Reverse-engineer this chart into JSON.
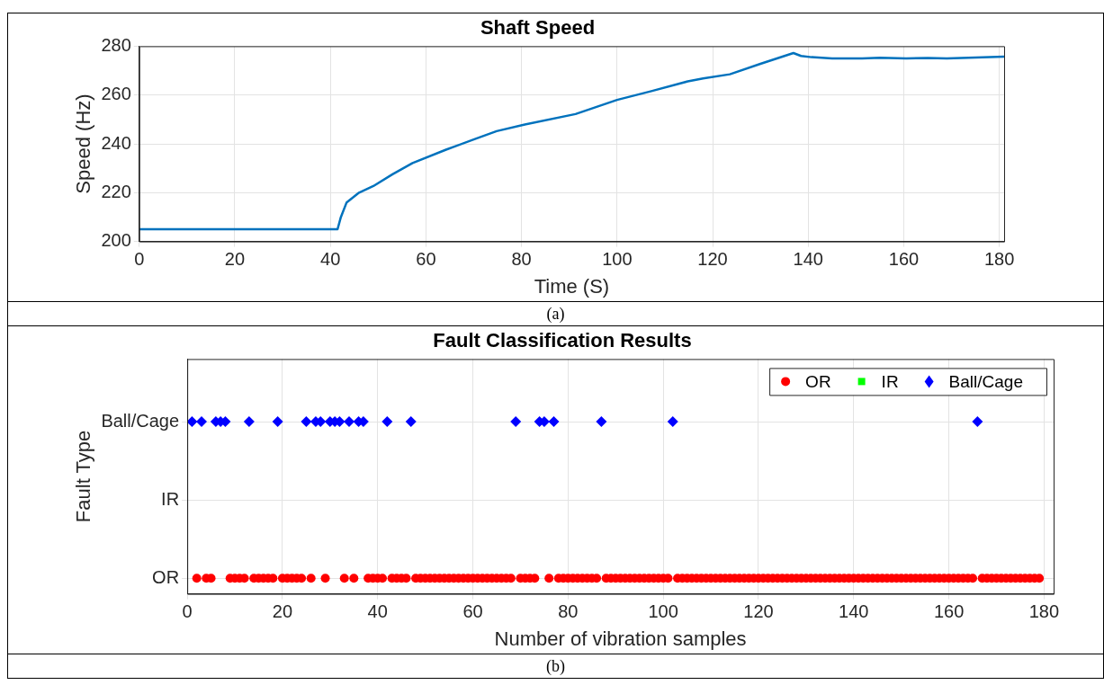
{
  "chart_data": [
    {
      "type": "line",
      "title": "Shaft Speed",
      "xlabel": "Time (S)",
      "ylabel": "Speed (Hz)",
      "annotations": [
        "(a)"
      ],
      "series": [
        {
          "color": "#0072bd",
          "x": [
            0,
            10,
            20,
            30,
            41.5,
            42.2,
            43.4,
            46,
            49,
            53,
            57.2,
            64.2,
            70,
            74.8,
            80.7,
            91.3,
            100,
            107,
            114.8,
            118,
            123.6,
            130,
            136.9,
            138.5,
            140.7,
            145,
            151.3,
            155,
            160.5,
            165,
            169,
            175,
            181
          ],
          "values": [
            205,
            205,
            205,
            205,
            205,
            210,
            216,
            220,
            222.7,
            227.5,
            232.1,
            237.6,
            241.8,
            245.2,
            247.9,
            252.2,
            258,
            261.5,
            265.6,
            266.8,
            268.5,
            272.8,
            277.2,
            276,
            275.5,
            275,
            275,
            275.3,
            275,
            275.2,
            275,
            275.4,
            275.7
          ]
        }
      ],
      "xlim": [
        0,
        181
      ],
      "xticks": [
        0,
        20,
        40,
        60,
        80,
        100,
        120,
        140,
        160,
        180
      ],
      "ylim": [
        200,
        280
      ],
      "yticks": [
        200,
        220,
        240,
        260,
        280
      ],
      "grid": true,
      "line_style": "solid"
    },
    {
      "type": "scatter",
      "orientation": "horizontal",
      "title": "Fault Classification Results",
      "xlabel": "Number of vibration samples",
      "ylabel": "Fault Type",
      "annotations": [
        "(b)"
      ],
      "categories": [
        "Ball/Cage",
        "IR",
        "OR"
      ],
      "series": [
        {
          "name": "OR",
          "color": "#ff0000",
          "marker": "circle",
          "x": [
            "OR",
            "OR",
            "OR",
            "OR",
            "OR",
            "OR",
            "OR",
            "OR",
            "OR",
            "OR",
            "OR",
            "OR",
            "OR",
            "OR",
            "OR",
            "OR",
            "OR",
            "OR",
            "OR",
            "OR",
            "OR",
            "OR",
            "OR",
            "OR",
            "OR",
            "OR",
            "OR",
            "OR",
            "OR",
            "OR",
            "OR",
            "OR",
            "OR",
            "OR",
            "OR",
            "OR",
            "OR",
            "OR",
            "OR",
            "OR",
            "OR",
            "OR",
            "OR",
            "OR",
            "OR",
            "OR",
            "OR",
            "OR",
            "OR",
            "OR",
            "OR",
            "OR",
            "OR",
            "OR",
            "OR",
            "OR",
            "OR",
            "OR",
            "OR",
            "OR",
            "OR",
            "OR",
            "OR",
            "OR",
            "OR",
            "OR",
            "OR",
            "OR",
            "OR",
            "OR",
            "OR",
            "OR",
            "OR",
            "OR",
            "OR",
            "OR",
            "OR",
            "OR",
            "OR",
            "OR",
            "OR",
            "OR",
            "OR",
            "OR",
            "OR",
            "OR",
            "OR",
            "OR",
            "OR",
            "OR",
            "OR",
            "OR",
            "OR",
            "OR",
            "OR",
            "OR",
            "OR",
            "OR",
            "OR",
            "OR",
            "OR",
            "OR",
            "OR",
            "OR",
            "OR",
            "OR",
            "OR",
            "OR",
            "OR",
            "OR",
            "OR",
            "OR",
            "OR",
            "OR",
            "OR",
            "OR",
            "OR",
            "OR",
            "OR",
            "OR",
            "OR",
            "OR",
            "OR",
            "OR",
            "OR",
            "OR",
            "OR",
            "OR",
            "OR",
            "OR",
            "OR",
            "OR",
            "OR",
            "OR",
            "OR",
            "OR",
            "OR",
            "OR",
            "OR",
            "OR",
            "OR",
            "OR",
            "OR",
            "OR",
            "OR",
            "OR",
            "OR",
            "OR",
            "OR",
            "OR",
            "OR",
            "OR",
            "OR",
            "OR"
          ],
          "values": [
            2,
            4,
            5,
            9,
            10,
            11,
            12,
            14,
            15,
            16,
            17,
            18,
            20,
            21,
            22,
            23,
            24,
            26,
            29,
            33,
            35,
            38,
            39,
            40,
            41,
            43,
            44,
            45,
            46,
            48,
            49,
            50,
            51,
            52,
            53,
            54,
            55,
            56,
            57,
            58,
            59,
            60,
            61,
            62,
            63,
            64,
            65,
            66,
            67,
            68,
            70,
            71,
            72,
            73,
            76,
            78,
            79,
            80,
            81,
            82,
            83,
            84,
            85,
            86,
            88,
            89,
            90,
            91,
            92,
            93,
            94,
            95,
            96,
            97,
            98,
            99,
            100,
            101,
            103,
            104,
            105,
            106,
            107,
            108,
            109,
            110,
            111,
            112,
            113,
            114,
            115,
            116,
            117,
            118,
            119,
            120,
            121,
            122,
            123,
            124,
            125,
            126,
            127,
            128,
            129,
            130,
            131,
            132,
            133,
            134,
            135,
            136,
            137,
            138,
            139,
            140,
            141,
            142,
            143,
            144,
            145,
            146,
            147,
            148,
            149,
            150,
            151,
            152,
            153,
            154,
            155,
            156,
            157,
            158,
            159,
            160,
            161,
            162,
            163,
            164,
            165,
            167,
            168,
            169,
            170,
            171,
            172,
            173,
            174,
            175,
            176,
            177,
            178,
            179
          ]
        },
        {
          "name": "IR",
          "color": "#00ff00",
          "marker": "square",
          "x": [
            "IR"
          ],
          "values": [
            null
          ]
        },
        {
          "name": "Ball/Cage",
          "color": "#0000ff",
          "marker": "diamond",
          "x": [
            "Ball/Cage",
            "Ball/Cage",
            "Ball/Cage",
            "Ball/Cage",
            "Ball/Cage",
            "Ball/Cage",
            "Ball/Cage",
            "Ball/Cage",
            "Ball/Cage",
            "Ball/Cage",
            "Ball/Cage",
            "Ball/Cage",
            "Ball/Cage",
            "Ball/Cage",
            "Ball/Cage",
            "Ball/Cage",
            "Ball/Cage",
            "Ball/Cage",
            "Ball/Cage",
            "Ball/Cage",
            "Ball/Cage",
            "Ball/Cage",
            "Ball/Cage",
            "Ball/Cage",
            "Ball/Cage"
          ],
          "values": [
            1,
            3,
            6,
            7,
            8,
            13,
            19,
            25,
            27,
            28,
            30,
            31,
            32,
            34,
            36,
            37,
            42,
            47,
            69,
            74,
            75,
            77,
            87,
            102,
            166
          ]
        }
      ],
      "xlim": [
        0,
        182
      ],
      "xticks": [
        0,
        20,
        40,
        60,
        80,
        100,
        120,
        140,
        160,
        180
      ],
      "grid": true,
      "legend": "top right"
    }
  ]
}
